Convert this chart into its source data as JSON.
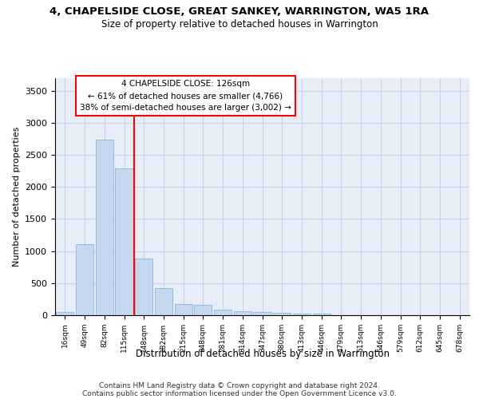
{
  "title": "4, CHAPELSIDE CLOSE, GREAT SANKEY, WARRINGTON, WA5 1RA",
  "subtitle": "Size of property relative to detached houses in Warrington",
  "xlabel": "Distribution of detached houses by size in Warrington",
  "ylabel": "Number of detached properties",
  "categories": [
    "16sqm",
    "49sqm",
    "82sqm",
    "115sqm",
    "148sqm",
    "182sqm",
    "215sqm",
    "248sqm",
    "281sqm",
    "314sqm",
    "347sqm",
    "380sqm",
    "413sqm",
    "446sqm",
    "479sqm",
    "513sqm",
    "546sqm",
    "579sqm",
    "612sqm",
    "645sqm",
    "678sqm"
  ],
  "values": [
    55,
    1110,
    2740,
    2290,
    880,
    425,
    170,
    165,
    90,
    60,
    55,
    40,
    30,
    20,
    0,
    0,
    0,
    0,
    0,
    0,
    0
  ],
  "bar_color": "#c5d8f0",
  "bar_edge_color": "#7aadd4",
  "red_line_x": 3.5,
  "annotation_line1": "4 CHAPELSIDE CLOSE: 126sqm",
  "annotation_line2": "← 61% of detached houses are smaller (4,766)",
  "annotation_line3": "38% of semi-detached houses are larger (3,002) →",
  "ylim_max": 3700,
  "yticks": [
    0,
    500,
    1000,
    1500,
    2000,
    2500,
    3000,
    3500
  ],
  "grid_color": "#c8d4e8",
  "bg_color": "#e8eef8",
  "footer_line1": "Contains HM Land Registry data © Crown copyright and database right 2024.",
  "footer_line2": "Contains public sector information licensed under the Open Government Licence v3.0."
}
